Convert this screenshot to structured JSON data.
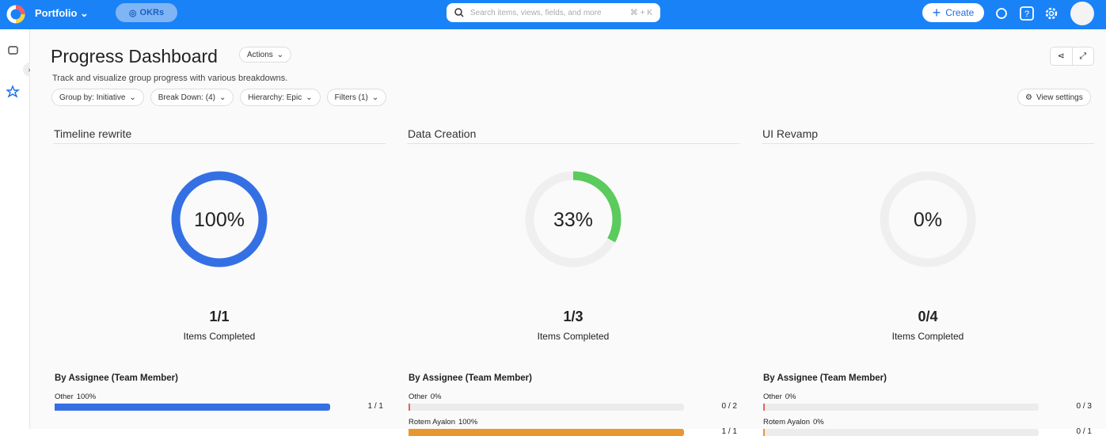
{
  "topbar": {
    "workspace": "Portfolio",
    "okr_button": "OKRs",
    "search_placeholder": "Search items, views, fields, and more",
    "search_shortcut": "⌘ + K",
    "create_button": "Create"
  },
  "header": {
    "title": "Progress Dashboard",
    "actions": "Actions",
    "description": "Track and visualize group progress with various breakdowns."
  },
  "filters": [
    "Group by: Initiative",
    "Break Down: (4)",
    "Hierarchy: Epic",
    "Filters (1)"
  ],
  "view_settings": "View settings",
  "panels": [
    {
      "title": "Timeline rewrite",
      "ring_color": "#3470e4",
      "progress": {
        "value": 100,
        "label": "100%"
      },
      "count": "1/1",
      "count_caption": "Items Completed",
      "breakdown_title": "By Assignee (Team Member)",
      "rows": [
        {
          "name": "Other",
          "color": "#3470e4",
          "percent": {
            "value": 100,
            "label": "100%"
          },
          "count": "1 / 1"
        }
      ]
    },
    {
      "title": "Data Creation",
      "ring_color": "#5acb5c",
      "progress": {
        "value": 33,
        "label": "33%"
      },
      "count": "1/3",
      "count_caption": "Items Completed",
      "breakdown_title": "By Assignee (Team Member)",
      "rows": [
        {
          "name": "Other",
          "color": "#e0665a",
          "percent": {
            "value": 0,
            "label": "0%"
          },
          "count": "0 / 2"
        },
        {
          "name": "Rotem Ayalon",
          "color": "#e8972e",
          "percent": {
            "value": 100,
            "label": "100%"
          },
          "count": "1 / 1"
        }
      ]
    },
    {
      "title": "UI Revamp",
      "ring_color": "#5acb5c",
      "progress": {
        "value": 0,
        "label": "0%"
      },
      "count": "0/4",
      "count_caption": "Items Completed",
      "breakdown_title": "By Assignee (Team Member)",
      "rows": [
        {
          "name": "Other",
          "color": "#e0665a",
          "percent": {
            "value": 0,
            "label": "0%"
          },
          "count": "0 / 3"
        },
        {
          "name": "Rotem Ayalon",
          "color": "#e8972e",
          "percent": {
            "value": 0,
            "label": "0%"
          },
          "count": "0 / 1"
        }
      ]
    }
  ]
}
